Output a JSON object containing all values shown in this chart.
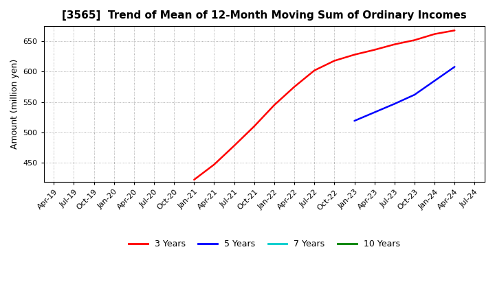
{
  "title": "[3565]  Trend of Mean of 12-Month Moving Sum of Ordinary Incomes",
  "ylabel": "Amount (million yen)",
  "background_color": "#ffffff",
  "plot_bg_color": "#ffffff",
  "grid_color": "#999999",
  "ylim": [
    418,
    675
  ],
  "yticks": [
    450,
    500,
    550,
    600,
    650
  ],
  "x_tick_labels": [
    "Apr-19",
    "Jul-19",
    "Oct-19",
    "Jan-20",
    "Apr-20",
    "Jul-20",
    "Oct-20",
    "Jan-21",
    "Apr-21",
    "Jul-21",
    "Oct-21",
    "Jan-22",
    "Apr-22",
    "Jul-22",
    "Oct-22",
    "Jan-23",
    "Apr-23",
    "Jul-23",
    "Oct-23",
    "Jan-24",
    "Apr-24",
    "Jul-24"
  ],
  "series": [
    {
      "label": "3 Years",
      "color": "#ff0000",
      "data_x_indices": [
        7,
        8,
        9,
        10,
        11,
        12,
        13,
        14,
        15,
        16,
        17,
        18,
        19,
        20
      ],
      "data_y": [
        422,
        447,
        478,
        510,
        545,
        575,
        602,
        618,
        628,
        636,
        645,
        652,
        662,
        668
      ]
    },
    {
      "label": "5 Years",
      "color": "#0000ff",
      "data_x_indices": [
        15,
        16,
        17,
        18,
        19,
        20
      ],
      "data_y": [
        519,
        533,
        547,
        562,
        585,
        608
      ]
    },
    {
      "label": "7 Years",
      "color": "#00cccc",
      "data_x_indices": [],
      "data_y": []
    },
    {
      "label": "10 Years",
      "color": "#008000",
      "data_x_indices": [],
      "data_y": []
    }
  ],
  "legend_colors": [
    "#ff0000",
    "#0000ff",
    "#00cccc",
    "#008000"
  ],
  "legend_labels": [
    "3 Years",
    "5 Years",
    "7 Years",
    "10 Years"
  ],
  "title_fontsize": 11,
  "axis_label_fontsize": 9,
  "tick_fontsize": 8,
  "legend_fontsize": 9,
  "line_width": 1.8
}
